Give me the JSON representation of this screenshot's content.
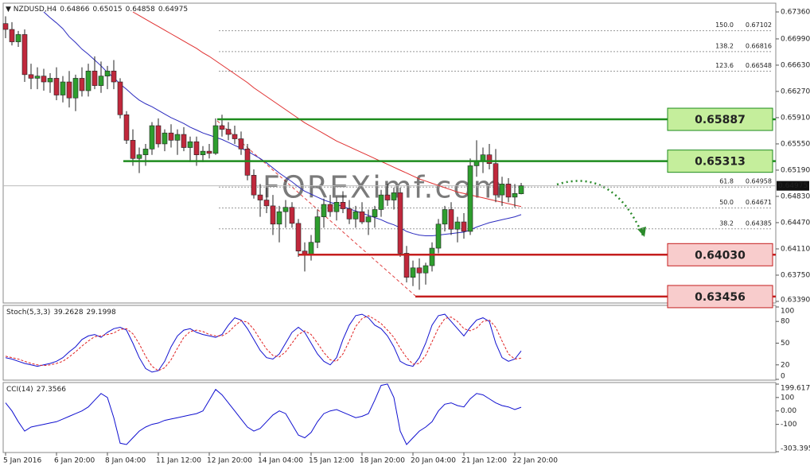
{
  "chart_data": [
    {
      "type": "candlestick",
      "title": "NZDUSD,H4",
      "categories": [
        "5 Jan 2016",
        null,
        null,
        null,
        null,
        null,
        null,
        null,
        "6 Jan 20:00",
        null,
        null,
        null,
        null,
        null,
        null,
        null,
        "8 Jan 04:00",
        null,
        null,
        null,
        null,
        null,
        null,
        null,
        "11 Jan 12:00",
        null,
        null,
        null,
        null,
        null,
        null,
        null,
        "12 Jan 20:00",
        null,
        null,
        null,
        null,
        null,
        null,
        null,
        "14 Jan 04:00",
        null,
        null,
        null,
        null,
        null,
        null,
        null,
        "15 Jan 12:00",
        null,
        null,
        null,
        null,
        null,
        null,
        null,
        "18 Jan 20:00",
        null,
        null,
        null,
        null,
        null,
        null,
        null,
        "20 Jan 04:00",
        null,
        null,
        null,
        null,
        null,
        null,
        null,
        "21 Jan 12:00",
        null,
        null,
        null,
        null,
        null,
        null,
        null,
        "22 Jan 20:00",
        null
      ],
      "open": [
        0.672,
        0.6712,
        0.6695,
        0.6705,
        0.665,
        0.6645,
        0.6648,
        0.664,
        0.6645,
        0.6622,
        0.664,
        0.6618,
        0.6645,
        0.6628,
        0.6655,
        0.6635,
        0.6648,
        0.6655,
        0.664,
        0.6595,
        0.656,
        0.6535,
        0.654,
        0.6548,
        0.658,
        0.6555,
        0.657,
        0.656,
        0.6568,
        0.655,
        0.6558,
        0.654,
        0.6545,
        0.6542,
        0.658,
        0.6575,
        0.6568,
        0.6562,
        0.6548,
        0.6512,
        0.6485,
        0.6478,
        0.647,
        0.6445,
        0.6462,
        0.6468,
        0.6446,
        0.6408,
        0.6403,
        0.642,
        0.6455,
        0.6472,
        0.6462,
        0.6475,
        0.6466,
        0.6452,
        0.6462,
        0.6448,
        0.6455,
        0.6465,
        0.6485,
        0.6478,
        0.6488,
        0.6405,
        0.6372,
        0.6385,
        0.6378,
        0.6388,
        0.6412,
        0.6445,
        0.6465,
        0.6438,
        0.6448,
        0.6435,
        0.6525,
        0.6532,
        0.654,
        0.6528,
        0.6485,
        0.65,
        0.6482,
        0.64866
      ],
      "high": [
        0.673,
        0.6722,
        0.671,
        0.6712,
        0.6665,
        0.666,
        0.6658,
        0.6652,
        0.666,
        0.6648,
        0.6655,
        0.665,
        0.666,
        0.6665,
        0.6675,
        0.6668,
        0.6662,
        0.667,
        0.6645,
        0.66,
        0.6575,
        0.655,
        0.6555,
        0.6585,
        0.659,
        0.6575,
        0.6582,
        0.6575,
        0.6578,
        0.6565,
        0.6565,
        0.6552,
        0.6555,
        0.659,
        0.6595,
        0.6585,
        0.658,
        0.6572,
        0.6555,
        0.652,
        0.65,
        0.6495,
        0.6485,
        0.647,
        0.6478,
        0.6475,
        0.6452,
        0.642,
        0.643,
        0.6465,
        0.648,
        0.6485,
        0.6482,
        0.649,
        0.6478,
        0.647,
        0.6475,
        0.6465,
        0.647,
        0.6492,
        0.65,
        0.6495,
        0.6495,
        0.6415,
        0.6395,
        0.6398,
        0.6392,
        0.642,
        0.6452,
        0.647,
        0.6475,
        0.6455,
        0.646,
        0.6535,
        0.656,
        0.655,
        0.6555,
        0.6548,
        0.651,
        0.6508,
        0.65,
        0.65015
      ],
      "low": [
        0.67,
        0.669,
        0.6688,
        0.664,
        0.663,
        0.663,
        0.6628,
        0.6625,
        0.6615,
        0.6612,
        0.6605,
        0.66,
        0.662,
        0.662,
        0.663,
        0.6625,
        0.663,
        0.663,
        0.659,
        0.6555,
        0.6525,
        0.6515,
        0.6525,
        0.654,
        0.655,
        0.6545,
        0.655,
        0.654,
        0.6545,
        0.653,
        0.6525,
        0.653,
        0.6535,
        0.654,
        0.6565,
        0.656,
        0.6555,
        0.654,
        0.6505,
        0.648,
        0.6455,
        0.646,
        0.643,
        0.642,
        0.644,
        0.644,
        0.64,
        0.638,
        0.6395,
        0.6412,
        0.644,
        0.6455,
        0.645,
        0.646,
        0.6445,
        0.644,
        0.6445,
        0.643,
        0.644,
        0.6455,
        0.647,
        0.6465,
        0.64,
        0.6365,
        0.636,
        0.6355,
        0.6362,
        0.638,
        0.6405,
        0.6435,
        0.643,
        0.642,
        0.6425,
        0.643,
        0.651,
        0.6515,
        0.652,
        0.6475,
        0.647,
        0.6475,
        0.6468,
        0.64858
      ],
      "close": [
        0.6712,
        0.6695,
        0.6705,
        0.665,
        0.6645,
        0.6648,
        0.664,
        0.6645,
        0.6622,
        0.664,
        0.6618,
        0.6645,
        0.6628,
        0.6655,
        0.6635,
        0.6648,
        0.6655,
        0.664,
        0.6595,
        0.656,
        0.6535,
        0.654,
        0.6548,
        0.658,
        0.6555,
        0.657,
        0.656,
        0.6568,
        0.655,
        0.6558,
        0.654,
        0.6545,
        0.6542,
        0.658,
        0.6575,
        0.6568,
        0.6562,
        0.6548,
        0.6512,
        0.6485,
        0.6478,
        0.647,
        0.6445,
        0.6462,
        0.6468,
        0.6446,
        0.6408,
        0.6403,
        0.642,
        0.6455,
        0.6472,
        0.6462,
        0.6475,
        0.6466,
        0.6452,
        0.6462,
        0.6448,
        0.6455,
        0.6465,
        0.6485,
        0.6478,
        0.6488,
        0.6405,
        0.6372,
        0.6385,
        0.6378,
        0.6388,
        0.6412,
        0.6445,
        0.6465,
        0.6438,
        0.6448,
        0.6435,
        0.6525,
        0.6532,
        0.654,
        0.6528,
        0.6485,
        0.65,
        0.6482,
        0.6487,
        0.64975
      ],
      "up_color": "#2e9e2e",
      "down_color": "#c0283c",
      "overlays": [
        {
          "color": "#2b2bbf",
          "values": [
            null,
            null,
            null,
            null,
            null,
            null,
            0.6736,
            0.6728,
            0.6721,
            0.6713,
            0.6702,
            0.6694,
            0.6685,
            0.6678,
            0.667,
            0.6662,
            0.6653,
            0.6646,
            0.6637,
            0.663,
            0.6622,
            0.6615,
            0.661,
            0.6606,
            0.6601,
            0.6596,
            0.6591,
            0.6587,
            0.6583,
            0.6578,
            0.6574,
            0.657,
            0.6567,
            0.6564,
            0.6561,
            0.6557,
            0.6553,
            0.6549,
            0.6545,
            0.654,
            0.6535,
            0.6529,
            0.6522,
            0.6515,
            0.6509,
            0.6503,
            0.6496,
            0.649,
            0.6486,
            0.6482,
            0.6478,
            0.6475,
            0.6472,
            0.6469,
            0.6466,
            0.6463,
            0.646,
            0.6457,
            0.6454,
            0.6451,
            0.6447,
            0.6444,
            0.644,
            0.6435,
            0.6432,
            0.643,
            0.6429,
            0.6429,
            0.643,
            0.6431,
            0.6432,
            0.6433,
            0.6434,
            0.6437,
            0.6441,
            0.6444,
            0.6447,
            0.6449,
            0.6451,
            0.6453,
            0.6455,
            0.6458
          ]
        },
        {
          "color": "#e03030",
          "values": [
            null,
            null,
            null,
            null,
            null,
            null,
            null,
            null,
            null,
            null,
            null,
            null,
            null,
            null,
            null,
            null,
            null,
            null,
            null,
            null,
            0.6736,
            0.6731,
            0.6726,
            0.6721,
            0.6716,
            0.6711,
            0.6706,
            0.6701,
            0.6696,
            0.6691,
            0.6686,
            0.668,
            0.6675,
            0.6669,
            0.6663,
            0.6657,
            0.6651,
            0.6645,
            0.6639,
            0.6632,
            0.6626,
            0.662,
            0.6614,
            0.6608,
            0.6602,
            0.6596,
            0.659,
            0.6584,
            0.6579,
            0.6574,
            0.6569,
            0.6564,
            0.6559,
            0.6555,
            0.6551,
            0.6547,
            0.6543,
            0.6539,
            0.6535,
            0.6531,
            0.6527,
            0.6523,
            0.6519,
            0.6515,
            0.6511,
            0.6507,
            0.6504,
            0.6501,
            0.6498,
            0.6495,
            0.6492,
            0.6489,
            0.6487,
            0.6485,
            0.6483,
            0.6481,
            0.6479,
            0.6477,
            0.6475,
            0.6473,
            0.6471,
            0.6469
          ]
        }
      ],
      "levels": [
        {
          "price": 0.65887,
          "color": "#1e8c1e",
          "box": "#c5ee9c"
        },
        {
          "price": 0.65313,
          "color": "#1e8c1e",
          "box": "#c5ee9c"
        },
        {
          "price": {
            "value": 0.6403,
            "label": "0.64030"
          },
          "color": "#c41e1e",
          "box": "#f8cccc"
        },
        {
          "price": 0.63456,
          "color": "#c41e1e",
          "box": "#f8cccc"
        }
      ],
      "fib": [
        {
          "level": "150.0",
          "price": 0.67102
        },
        {
          "level": "138.2",
          "price": 0.66816
        },
        {
          "level": "123.6",
          "price": 0.66548
        },
        {
          "level": "61.8",
          "price": 0.64958
        },
        {
          "level": "50.0",
          "price": 0.64671
        },
        {
          "level": "38.2",
          "price": 0.64385
        }
      ],
      "watermark": "FOREXimf.com",
      "ylim": [
        0.63368,
        0.6748
      ],
      "yticks": [
        {
          "value": 0.6736,
          "label": "0.67360"
        },
        {
          "value": 0.6699,
          "label": "0.66990"
        },
        {
          "value": 0.6663,
          "label": "0.66630"
        },
        {
          "value": 0.6627,
          "label": "0.66270"
        },
        {
          "value": 0.6591,
          "label": "0.65910"
        },
        {
          "value": 0.6555,
          "label": "0.65550"
        },
        {
          "value": 0.6519,
          "label": "0.65190"
        },
        {
          "value": 0.6483,
          "label": "0.64830"
        },
        {
          "value": 0.6447,
          "label": "0.64470"
        },
        {
          "value": 0.6411,
          "label": "0.64110"
        },
        {
          "value": 0.6375,
          "label": "0.63750"
        },
        {
          "value": 0.6339,
          "label": "0.63390"
        }
      ]
    },
    {
      "type": "line",
      "title": "Stoch(5,3,3)",
      "series": [
        {
          "color": "#1010d0",
          "dashed": false,
          "values": [
            30,
            28,
            25,
            22,
            20,
            18,
            20,
            22,
            25,
            30,
            38,
            45,
            55,
            60,
            62,
            58,
            65,
            70,
            72,
            68,
            50,
            30,
            15,
            10,
            12,
            25,
            45,
            60,
            68,
            70,
            65,
            62,
            60,
            58,
            62,
            75,
            85,
            82,
            70,
            55,
            40,
            30,
            28,
            35,
            50,
            65,
            72,
            65,
            50,
            35,
            25,
            20,
            30,
            55,
            75,
            88,
            90,
            85,
            75,
            70,
            60,
            45,
            25,
            20,
            18,
            30,
            50,
            75,
            88,
            90,
            80,
            70,
            60,
            72,
            82,
            85,
            80,
            50,
            30,
            25,
            28,
            39.2628
          ]
        },
        {
          "color": "#e02020",
          "dashed": true,
          "values": [
            32,
            30,
            28,
            25,
            22,
            20,
            19,
            20,
            22,
            25,
            31,
            38,
            46,
            53,
            59,
            60,
            62,
            64,
            69,
            70,
            63,
            49,
            32,
            18,
            12,
            16,
            27,
            43,
            58,
            66,
            68,
            66,
            62,
            60,
            60,
            65,
            74,
            81,
            79,
            69,
            55,
            42,
            33,
            31,
            38,
            50,
            62,
            67,
            62,
            50,
            37,
            27,
            25,
            35,
            53,
            73,
            84,
            88,
            83,
            77,
            68,
            58,
            43,
            30,
            21,
            22,
            33,
            52,
            71,
            84,
            86,
            80,
            70,
            67,
            71,
            80,
            82,
            72,
            53,
            35,
            28,
            29.1998
          ]
        }
      ],
      "ylim": [
        0,
        100
      ],
      "yticks": [
        100,
        80,
        50,
        20,
        0
      ]
    },
    {
      "type": "line",
      "title": "CCI(14)",
      "series": [
        {
          "color": "#1010d0",
          "dashed": false,
          "values": [
            60,
            0,
            -80,
            -150,
            -120,
            -110,
            -100,
            -90,
            -80,
            -60,
            -40,
            -20,
            0,
            30,
            80,
            130,
            100,
            -50,
            -240,
            -250,
            -200,
            -150,
            -120,
            -100,
            -90,
            -70,
            -60,
            -50,
            -40,
            -30,
            -20,
            0,
            80,
            160,
            120,
            60,
            0,
            -60,
            -120,
            -150,
            -130,
            -80,
            -30,
            0,
            -20,
            -100,
            -180,
            -200,
            -160,
            -80,
            -20,
            0,
            10,
            -10,
            -30,
            -50,
            -40,
            -20,
            80,
            190,
            200,
            100,
            -150,
            -250,
            -200,
            -150,
            -120,
            -80,
            0,
            50,
            60,
            40,
            30,
            90,
            130,
            120,
            90,
            60,
            40,
            30,
            10,
            27.3566
          ]
        }
      ],
      "ylim": [
        -303.3956,
        199.6178
      ],
      "yticks": [
        199.6178,
        100,
        {
          "value": 0,
          "label": "0.00"
        },
        -100,
        -303.3956
      ]
    }
  ]
}
